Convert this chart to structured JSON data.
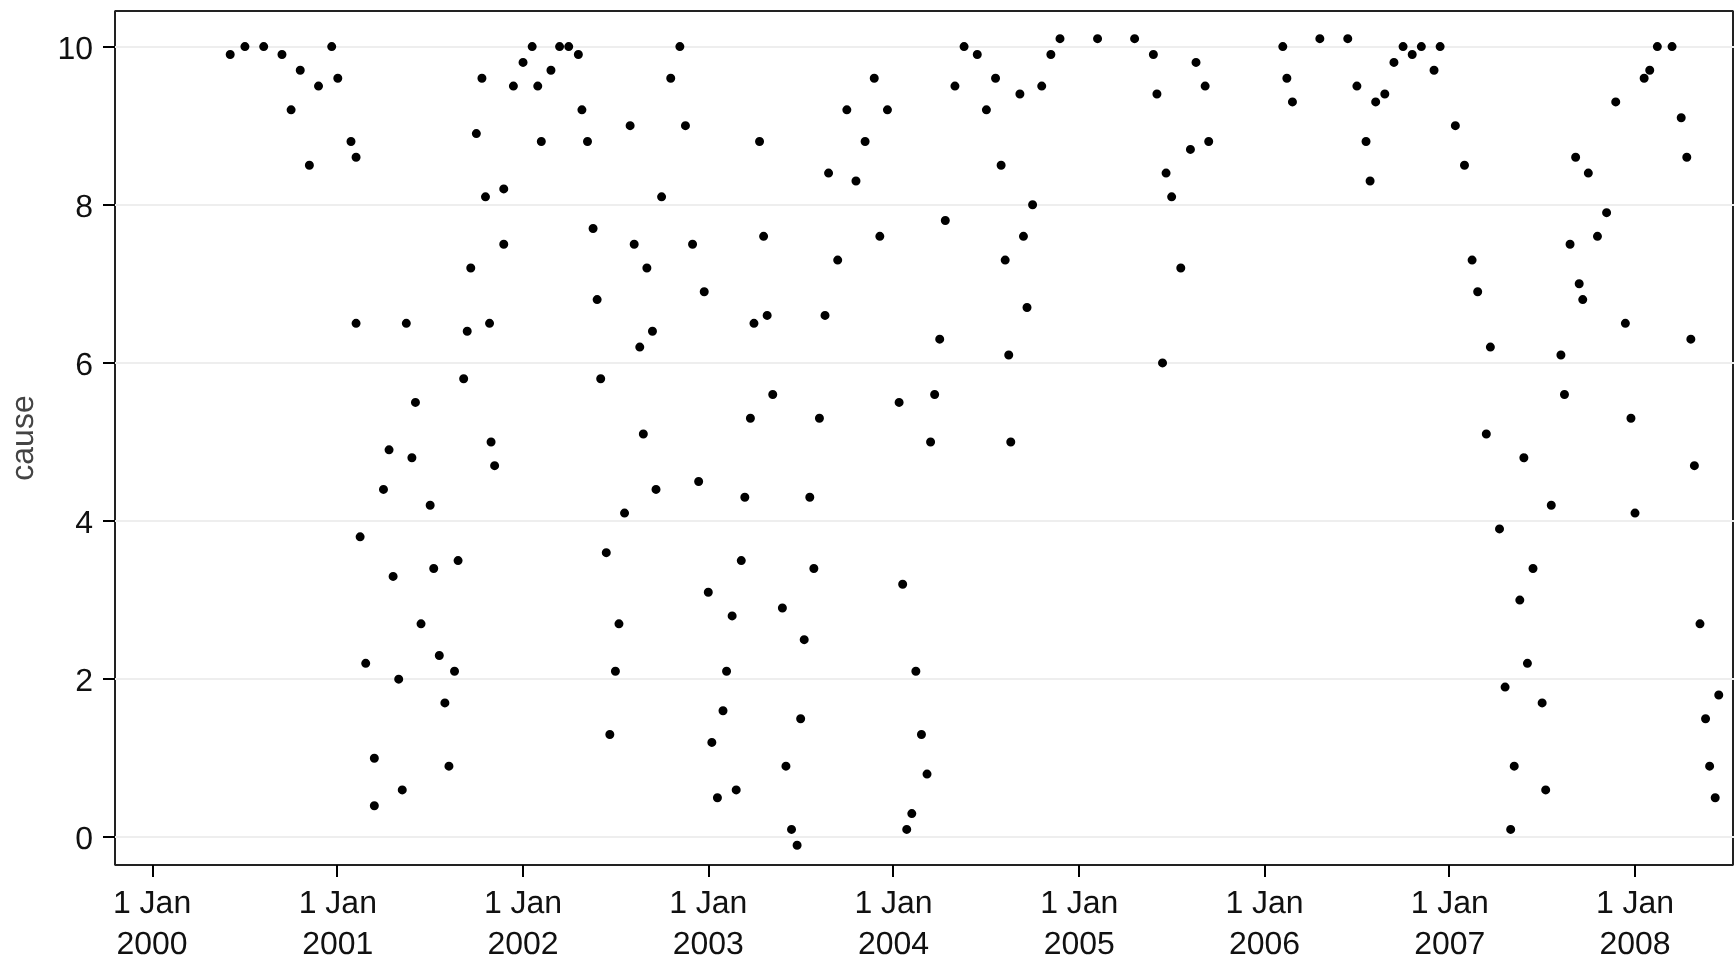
{
  "chart_data": {
    "type": "scatter",
    "ylabel": "cause",
    "marker": "circle",
    "grid": "y",
    "xlim": [
      "1999-10-20",
      "2008-07-16"
    ],
    "ylim": [
      -0.35,
      10.45
    ],
    "xticks": [
      {
        "value": "2000-01-01",
        "label": "1 Jan\n2000"
      },
      {
        "value": "2001-01-01",
        "label": "1 Jan\n2001"
      },
      {
        "value": "2002-01-01",
        "label": "1 Jan\n2002"
      },
      {
        "value": "2003-01-01",
        "label": "1 Jan\n2003"
      },
      {
        "value": "2004-01-01",
        "label": "1 Jan\n2004"
      },
      {
        "value": "2005-01-01",
        "label": "1 Jan\n2005"
      },
      {
        "value": "2006-01-01",
        "label": "1 Jan\n2006"
      },
      {
        "value": "2007-01-01",
        "label": "1 Jan\n2007"
      },
      {
        "value": "2008-01-01",
        "label": "1 Jan\n2008"
      }
    ],
    "yticks": [
      0,
      2,
      4,
      6,
      8,
      10
    ],
    "series": [
      {
        "color": "#000000",
        "x": [
          "2000-06-03",
          "2000-07-02",
          "2000-08-08",
          "2000-09-13",
          "2000-10-01",
          "2000-10-19",
          "2000-11-06",
          "2000-11-24",
          "2000-12-20",
          "2001-01-01",
          "2001-01-27",
          "2001-02-06",
          "2001-02-06",
          "2001-02-14",
          "2001-02-25",
          "2001-03-14",
          "2001-03-14",
          "2001-04-01",
          "2001-04-12",
          "2001-04-20",
          "2001-05-01",
          "2001-05-08",
          "2001-05-16",
          "2001-05-27",
          "2001-06-03",
          "2001-06-14",
          "2001-07-02",
          "2001-07-09",
          "2001-07-20",
          "2001-07-31",
          "2001-08-08",
          "2001-08-19",
          "2001-08-26",
          "2001-09-06",
          "2001-09-13",
          "2001-09-20",
          "2001-10-01",
          "2001-10-12",
          "2001-10-19",
          "2001-10-27",
          "2001-10-30",
          "2001-11-06",
          "2001-11-24",
          "2001-11-24",
          "2001-12-13",
          "2002-01-01",
          "2002-01-19",
          "2002-01-30",
          "2002-02-06",
          "2002-02-25",
          "2002-03-14",
          "2002-04-01",
          "2002-04-20",
          "2002-04-27",
          "2002-05-08",
          "2002-05-19",
          "2002-05-27",
          "2002-06-03",
          "2002-06-14",
          "2002-06-21",
          "2002-07-02",
          "2002-07-09",
          "2002-07-20",
          "2002-07-31",
          "2002-08-08",
          "2002-08-19",
          "2002-08-26",
          "2002-09-02",
          "2002-09-13",
          "2002-09-20",
          "2002-10-01",
          "2002-10-19",
          "2002-11-06",
          "2002-11-17",
          "2002-12-01",
          "2002-12-13",
          "2002-12-24",
          "2003-01-01",
          "2003-01-08",
          "2003-01-19",
          "2003-01-30",
          "2003-02-06",
          "2003-02-17",
          "2003-02-25",
          "2003-03-07",
          "2003-03-14",
          "2003-03-25",
          "2003-04-01",
          "2003-04-12",
          "2003-04-20",
          "2003-04-27",
          "2003-05-08",
          "2003-05-27",
          "2003-06-03",
          "2003-06-14",
          "2003-06-25",
          "2003-07-02",
          "2003-07-09",
          "2003-07-20",
          "2003-07-28",
          "2003-08-08",
          "2003-08-19",
          "2003-08-26",
          "2003-09-13",
          "2003-10-01",
          "2003-10-19",
          "2003-11-06",
          "2003-11-24",
          "2003-12-05",
          "2003-12-20",
          "2004-01-12",
          "2004-01-19",
          "2004-01-27",
          "2004-02-06",
          "2004-02-14",
          "2004-02-25",
          "2004-03-07",
          "2004-03-14",
          "2004-03-22",
          "2004-04-01",
          "2004-04-12",
          "2004-05-01",
          "2004-05-19",
          "2004-06-14",
          "2004-07-02",
          "2004-07-20",
          "2004-07-31",
          "2004-08-08",
          "2004-08-15",
          "2004-08-19",
          "2004-09-06",
          "2004-09-13",
          "2004-09-20",
          "2004-10-01",
          "2004-10-19",
          "2004-11-06",
          "2004-11-24",
          "2005-02-06",
          "2005-04-20",
          "2005-05-27",
          "2005-06-03",
          "2005-06-14",
          "2005-06-21",
          "2005-07-02",
          "2005-07-20",
          "2005-08-08",
          "2005-08-19",
          "2005-09-06",
          "2005-09-13",
          "2006-02-06",
          "2006-02-14",
          "2006-02-25",
          "2006-04-20",
          "2006-06-14",
          "2006-07-02",
          "2006-07-20",
          "2006-07-28",
          "2006-08-08",
          "2006-08-26",
          "2006-09-13",
          "2006-10-01",
          "2006-10-19",
          "2006-11-06",
          "2006-12-01",
          "2006-12-13",
          "2007-01-12",
          "2007-01-30",
          "2007-02-14",
          "2007-02-25",
          "2007-03-14",
          "2007-03-22",
          "2007-04-09",
          "2007-04-20",
          "2007-05-01",
          "2007-05-08",
          "2007-05-19",
          "2007-05-27",
          "2007-06-03",
          "2007-06-14",
          "2007-07-02",
          "2007-07-09",
          "2007-07-20",
          "2007-08-08",
          "2007-08-15",
          "2007-08-26",
          "2007-09-06",
          "2007-09-13",
          "2007-09-20",
          "2007-10-01",
          "2007-10-19",
          "2007-11-06",
          "2007-11-24",
          "2007-12-13",
          "2007-12-24",
          "2008-01-01",
          "2008-01-19",
          "2008-01-30",
          "2008-02-14",
          "2008-03-14",
          "2008-04-01",
          "2008-04-12",
          "2008-04-20",
          "2008-04-27",
          "2008-05-08",
          "2008-05-19",
          "2008-05-27",
          "2008-06-07",
          "2008-06-14"
        ],
        "values": [
          9.9,
          10,
          10,
          9.9,
          9.2,
          9.7,
          8.5,
          9.5,
          10,
          9.6,
          8.8,
          8.6,
          6.5,
          3.8,
          2.2,
          1.0,
          0.4,
          4.4,
          4.9,
          3.3,
          2.0,
          0.6,
          6.5,
          4.8,
          5.5,
          2.7,
          4.2,
          3.4,
          2.3,
          1.7,
          0.9,
          2.1,
          3.5,
          5.8,
          6.4,
          7.2,
          8.9,
          9.6,
          8.1,
          6.5,
          5.0,
          4.7,
          7.5,
          8.2,
          9.5,
          9.8,
          10,
          9.5,
          8.8,
          9.7,
          10,
          10,
          9.9,
          9.2,
          8.8,
          7.7,
          6.8,
          5.8,
          3.6,
          1.3,
          2.1,
          2.7,
          4.1,
          9.0,
          7.5,
          6.2,
          5.1,
          7.2,
          6.4,
          4.4,
          8.1,
          9.6,
          10,
          9.0,
          7.5,
          4.5,
          6.9,
          3.1,
          1.2,
          0.5,
          1.6,
          2.1,
          2.8,
          0.6,
          3.5,
          4.3,
          5.3,
          6.5,
          8.8,
          7.6,
          6.6,
          5.6,
          2.9,
          0.9,
          0.1,
          -0.1,
          1.5,
          2.5,
          4.3,
          3.4,
          5.3,
          6.6,
          8.4,
          7.3,
          9.2,
          8.3,
          8.8,
          9.6,
          7.6,
          9.2,
          5.5,
          3.2,
          0.1,
          0.3,
          2.1,
          1.3,
          0.8,
          5.0,
          5.6,
          6.3,
          7.8,
          9.5,
          10,
          9.9,
          9.2,
          9.6,
          8.5,
          7.3,
          6.1,
          5.0,
          9.4,
          7.6,
          6.7,
          8.0,
          9.5,
          9.9,
          10.1,
          10.1,
          10.1,
          9.9,
          9.4,
          6.0,
          8.4,
          8.1,
          7.2,
          8.7,
          9.8,
          9.5,
          8.8,
          10.0,
          9.6,
          9.3,
          10.1,
          10.1,
          9.5,
          8.8,
          8.3,
          9.3,
          9.4,
          9.8,
          10,
          9.9,
          10,
          9.7,
          10,
          9.0,
          8.5,
          7.3,
          6.9,
          5.1,
          6.2,
          3.9,
          1.9,
          0.1,
          0.9,
          3.0,
          4.8,
          2.2,
          3.4,
          1.7,
          0.6,
          4.2,
          6.1,
          5.6,
          7.5,
          8.6,
          7.0,
          6.8,
          8.4,
          7.6,
          7.9,
          9.3,
          6.5,
          5.3,
          4.1,
          9.6,
          9.7,
          10,
          10,
          9.1,
          8.6,
          6.3,
          4.7,
          2.7,
          1.5,
          0.9,
          0.5,
          1.8
        ]
      }
    ]
  }
}
